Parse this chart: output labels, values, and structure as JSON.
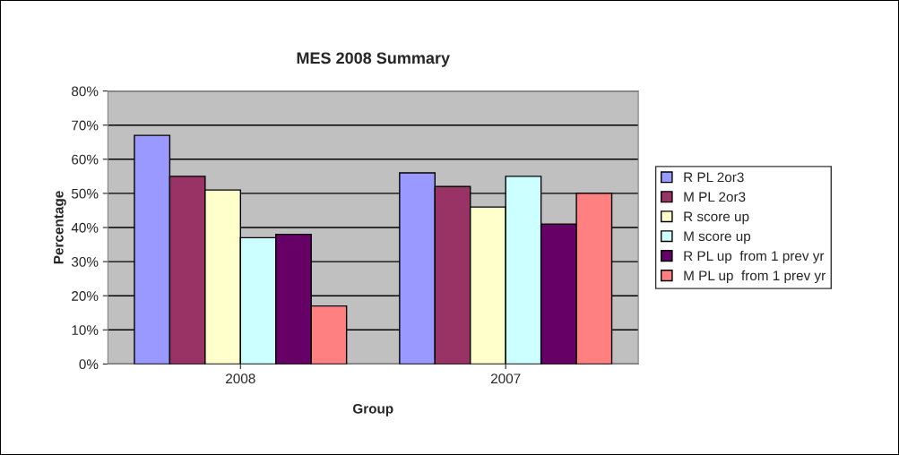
{
  "chart_data": {
    "type": "bar",
    "title": "MES 2008 Summary",
    "xlabel": "Group",
    "ylabel": "Percentage",
    "categories": [
      "2008",
      "2007"
    ],
    "series": [
      {
        "name": "R PL 2or3",
        "color": "#9999ff",
        "values": [
          67,
          56
        ]
      },
      {
        "name": "M PL 2or3",
        "color": "#993366",
        "values": [
          55,
          52
        ]
      },
      {
        "name": "R score up",
        "color": "#ffffcc",
        "values": [
          51,
          46
        ]
      },
      {
        "name": "M score up",
        "color": "#ccffff",
        "values": [
          37,
          55
        ]
      },
      {
        "name": "R PL up  from 1 prev yr",
        "color": "#660066",
        "values": [
          38,
          41
        ]
      },
      {
        "name": "M PL up  from 1 prev yr",
        "color": "#ff8080",
        "values": [
          17,
          50
        ]
      }
    ],
    "ylim": [
      0,
      80
    ],
    "yticks": [
      {
        "value": 0,
        "label": "0%"
      },
      {
        "value": 10,
        "label": "10%"
      },
      {
        "value": 20,
        "label": "20%"
      },
      {
        "value": 30,
        "label": "30%"
      },
      {
        "value": 40,
        "label": "40%"
      },
      {
        "value": 50,
        "label": "50%"
      },
      {
        "value": 60,
        "label": "60%"
      },
      {
        "value": 70,
        "label": "70%"
      },
      {
        "value": 80,
        "label": "80%"
      }
    ],
    "grid": "y",
    "legend": "right"
  }
}
